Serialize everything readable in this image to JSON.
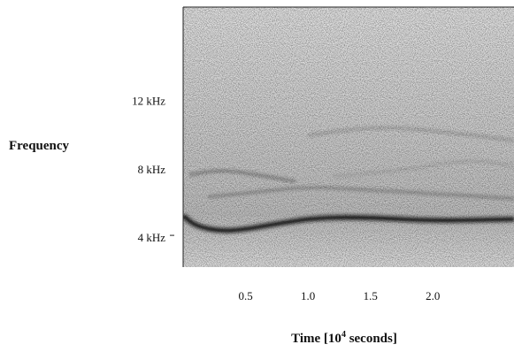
{
  "chart_data": {
    "type": "heatmap",
    "title": "",
    "xlabel": {
      "prefix": "Time  [10",
      "superscript": "4",
      "suffix": " seconds]"
    },
    "ylabel": "Frequency",
    "x_ticks": [
      {
        "value": 0.5,
        "label": "0.5"
      },
      {
        "value": 1.0,
        "label": "1.0"
      },
      {
        "value": 1.5,
        "label": "1.5"
      },
      {
        "value": 2.0,
        "label": "2.0"
      }
    ],
    "y_ticks": [
      {
        "value": 4,
        "label": "4 kHz"
      },
      {
        "value": 8,
        "label": "8  kHz"
      },
      {
        "value": 12,
        "label": "12 kHz"
      }
    ],
    "xlim": [
      0,
      2.65
    ],
    "ylim": [
      2.3,
      17.5
    ],
    "x_units": "10^4 seconds",
    "y_units": "kHz",
    "colormap": "grayscale",
    "features": [
      {
        "name": "",
        "intensity": 0.9,
        "points": [
          [
            0,
            5.3
          ],
          [
            0.1,
            4.7
          ],
          [
            0.3,
            4.4
          ],
          [
            0.5,
            4.5
          ],
          [
            0.8,
            4.9
          ],
          [
            1.1,
            5.2
          ],
          [
            1.5,
            5.2
          ],
          [
            2.0,
            5.0
          ],
          [
            2.65,
            5.1
          ]
        ]
      },
      {
        "name": "",
        "intensity": 0.5,
        "points": [
          [
            0.05,
            7.7
          ],
          [
            0.3,
            8.0
          ],
          [
            0.6,
            7.7
          ],
          [
            0.9,
            7.3
          ]
        ]
      },
      {
        "name": "",
        "intensity": 0.45,
        "points": [
          [
            0.2,
            6.4
          ],
          [
            0.6,
            6.7
          ],
          [
            1.0,
            7.0
          ],
          [
            1.5,
            6.8
          ],
          [
            2.0,
            6.6
          ],
          [
            2.65,
            6.3
          ]
        ]
      },
      {
        "name": "",
        "intensity": 0.35,
        "points": [
          [
            1.0,
            10.0
          ],
          [
            1.5,
            10.5
          ],
          [
            2.0,
            10.3
          ],
          [
            2.65,
            9.7
          ]
        ]
      },
      {
        "name": "",
        "intensity": 0.3,
        "points": [
          [
            1.2,
            7.6
          ],
          [
            1.8,
            8.0
          ],
          [
            2.3,
            8.6
          ],
          [
            2.65,
            8.2
          ]
        ]
      }
    ]
  }
}
